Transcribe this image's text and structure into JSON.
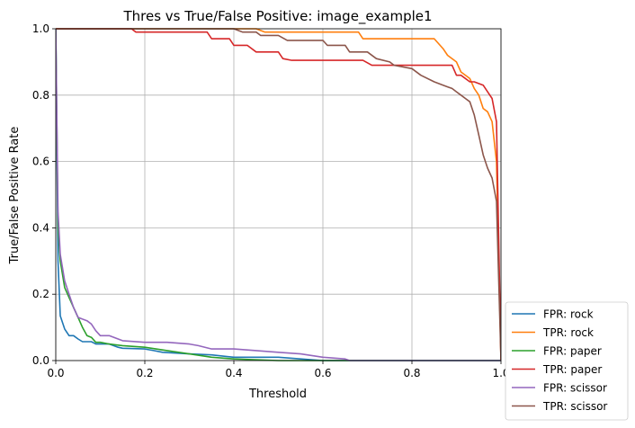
{
  "chart_data": {
    "type": "line",
    "title": "Thres vs True/False Positive: image_example1",
    "xlabel": "Threshold",
    "ylabel": "True/False Positive Rate",
    "xlim": [
      0,
      1
    ],
    "ylim": [
      0,
      1
    ],
    "xticks": [
      0,
      0.2,
      0.4,
      0.6,
      0.8,
      1
    ],
    "yticks": [
      0,
      0.2,
      0.4,
      0.6,
      0.8,
      1
    ],
    "xtick_labels": [
      "0.0",
      "0.2",
      "0.4",
      "0.6",
      "0.8",
      "1.0"
    ],
    "ytick_labels": [
      "0.0",
      "0.2",
      "0.4",
      "0.6",
      "0.8",
      "1.0"
    ],
    "grid": true,
    "legend_position": "outside lower right",
    "series": [
      {
        "name": "FPR: rock",
        "color": "#1f77b4",
        "x": [
          0,
          0.005,
          0.01,
          0.02,
          0.03,
          0.04,
          0.05,
          0.06,
          0.08,
          0.09,
          0.1,
          0.12,
          0.14,
          0.15,
          0.2,
          0.22,
          0.24,
          0.3,
          0.35,
          0.4,
          0.5,
          0.55,
          0.6,
          1
        ],
        "y": [
          1.0,
          0.3,
          0.135,
          0.095,
          0.075,
          0.075,
          0.065,
          0.057,
          0.057,
          0.05,
          0.05,
          0.05,
          0.04,
          0.037,
          0.035,
          0.03,
          0.025,
          0.02,
          0.017,
          0.01,
          0.01,
          0.005,
          0.0,
          0.0
        ]
      },
      {
        "name": "TPR: rock",
        "color": "#ff7f0e",
        "x": [
          0,
          0.01,
          0.45,
          0.47,
          0.68,
          0.69,
          0.85,
          0.87,
          0.88,
          0.9,
          0.91,
          0.93,
          0.94,
          0.95,
          0.96,
          0.97,
          0.98,
          0.99,
          1
        ],
        "y": [
          1.0,
          1.0,
          1.0,
          0.99,
          0.99,
          0.97,
          0.97,
          0.94,
          0.92,
          0.9,
          0.87,
          0.85,
          0.82,
          0.8,
          0.76,
          0.75,
          0.72,
          0.6,
          0.0
        ]
      },
      {
        "name": "FPR: paper",
        "color": "#2ca02c",
        "x": [
          0,
          0.005,
          0.01,
          0.02,
          0.03,
          0.04,
          0.05,
          0.06,
          0.07,
          0.08,
          0.09,
          0.1,
          0.12,
          0.15,
          0.2,
          0.25,
          0.3,
          0.35,
          0.4,
          0.5,
          0.55,
          1
        ],
        "y": [
          1.0,
          0.4,
          0.3,
          0.22,
          0.19,
          0.16,
          0.13,
          0.1,
          0.075,
          0.07,
          0.055,
          0.055,
          0.05,
          0.045,
          0.04,
          0.03,
          0.02,
          0.01,
          0.005,
          0.0,
          0.0,
          0.0
        ]
      },
      {
        "name": "TPR: paper",
        "color": "#d62728",
        "x": [
          0,
          0.17,
          0.18,
          0.34,
          0.35,
          0.39,
          0.4,
          0.43,
          0.45,
          0.5,
          0.51,
          0.53,
          0.69,
          0.71,
          0.89,
          0.9,
          0.91,
          0.93,
          0.94,
          0.96,
          0.97,
          0.98,
          0.99,
          1
        ],
        "y": [
          1.0,
          1.0,
          0.99,
          0.99,
          0.97,
          0.97,
          0.95,
          0.95,
          0.93,
          0.93,
          0.91,
          0.905,
          0.905,
          0.89,
          0.89,
          0.86,
          0.86,
          0.84,
          0.84,
          0.83,
          0.81,
          0.79,
          0.72,
          0.0
        ]
      },
      {
        "name": "FPR: scissor",
        "color": "#9467bd",
        "x": [
          0,
          0.005,
          0.01,
          0.02,
          0.03,
          0.04,
          0.05,
          0.06,
          0.07,
          0.08,
          0.09,
          0.1,
          0.12,
          0.15,
          0.2,
          0.25,
          0.3,
          0.32,
          0.35,
          0.4,
          0.45,
          0.5,
          0.55,
          0.6,
          0.65,
          0.66,
          1
        ],
        "y": [
          1.0,
          0.45,
          0.32,
          0.24,
          0.2,
          0.16,
          0.13,
          0.125,
          0.12,
          0.11,
          0.09,
          0.075,
          0.075,
          0.06,
          0.055,
          0.055,
          0.05,
          0.045,
          0.035,
          0.035,
          0.03,
          0.025,
          0.02,
          0.01,
          0.005,
          0.0,
          0.0
        ]
      },
      {
        "name": "TPR: scissor",
        "color": "#8c564b",
        "x": [
          0,
          0.01,
          0.4,
          0.42,
          0.45,
          0.46,
          0.5,
          0.52,
          0.6,
          0.61,
          0.65,
          0.66,
          0.7,
          0.72,
          0.75,
          0.76,
          0.8,
          0.82,
          0.85,
          0.87,
          0.88,
          0.89,
          0.9,
          0.91,
          0.92,
          0.93,
          0.94,
          0.95,
          0.96,
          0.97,
          0.98,
          0.99,
          1
        ],
        "y": [
          1.0,
          1.0,
          1.0,
          0.99,
          0.99,
          0.98,
          0.98,
          0.965,
          0.965,
          0.95,
          0.95,
          0.93,
          0.93,
          0.91,
          0.9,
          0.89,
          0.88,
          0.86,
          0.84,
          0.83,
          0.825,
          0.82,
          0.81,
          0.8,
          0.79,
          0.78,
          0.74,
          0.68,
          0.62,
          0.58,
          0.55,
          0.48,
          0.0
        ]
      }
    ]
  }
}
